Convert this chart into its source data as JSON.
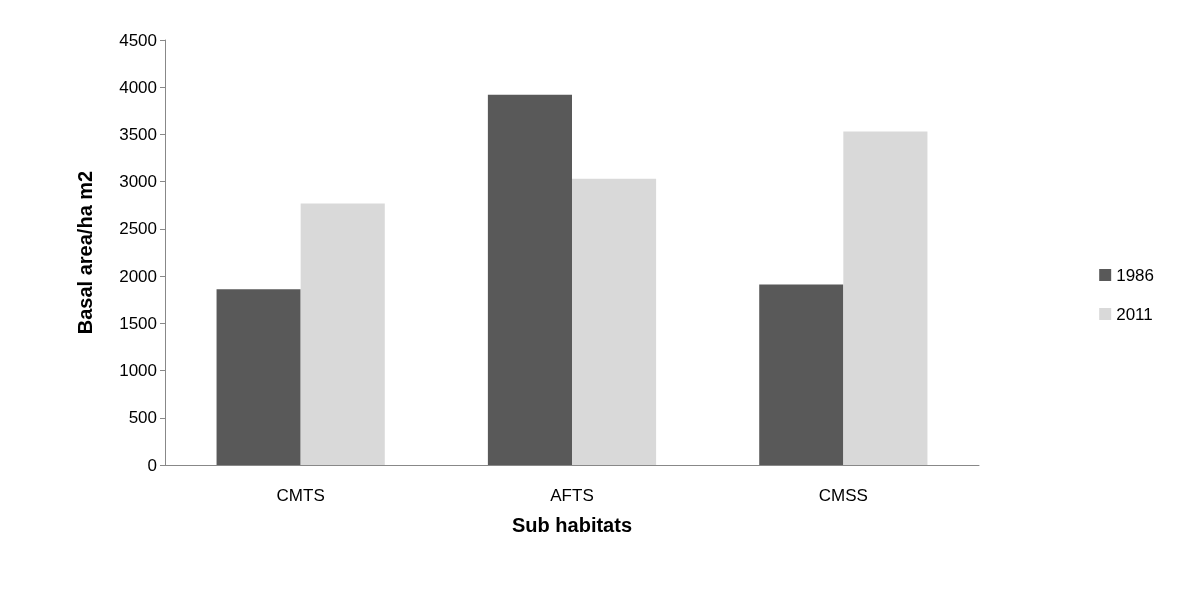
{
  "chart_data": {
    "type": "bar",
    "xlabel": "Sub habitats",
    "ylabel": "Basal area/ha m2",
    "categories": [
      "CMTS",
      "AFTS",
      "CMSS"
    ],
    "series": [
      {
        "name": "1986",
        "color": "#595959",
        "values": [
          1860,
          3920,
          1910
        ]
      },
      {
        "name": "2011",
        "color": "#d9d9d9",
        "values": [
          2770,
          3030,
          3530
        ]
      }
    ],
    "ylim": [
      0,
      4500
    ],
    "yticks": [
      0,
      500,
      1000,
      1500,
      2000,
      2500,
      3000,
      3500,
      4000,
      4500
    ],
    "grid": false,
    "legend": "right"
  }
}
